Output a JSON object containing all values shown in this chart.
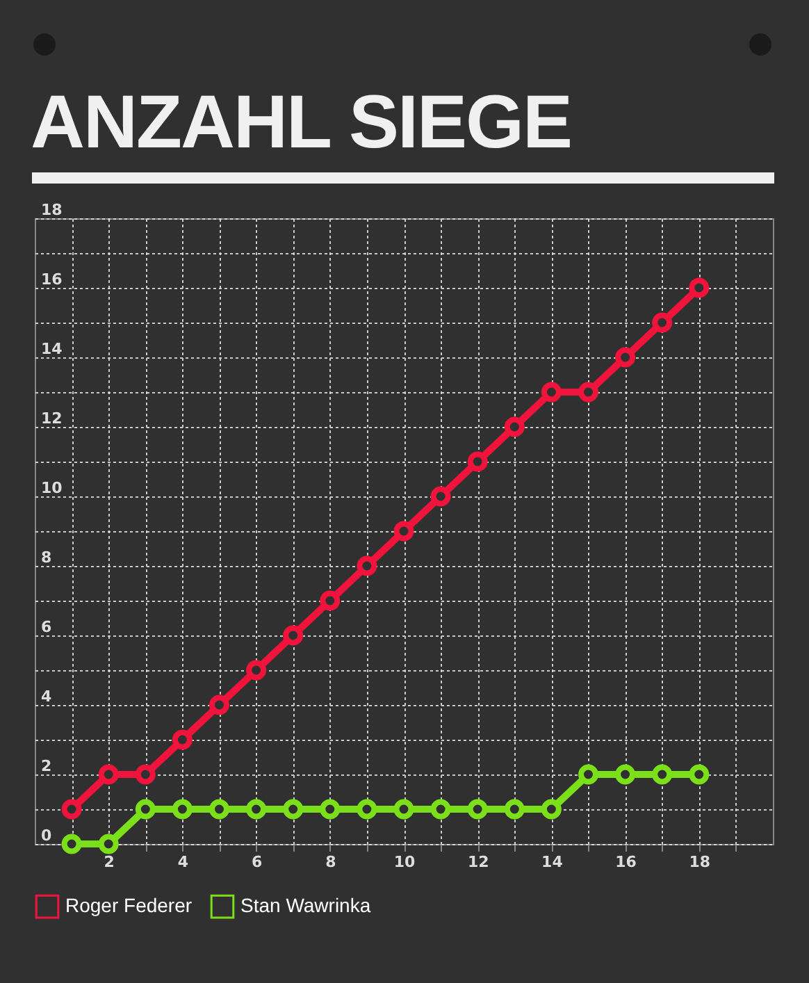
{
  "chart_data": {
    "type": "line",
    "title": "ANZAHL SIEGE",
    "x": [
      1,
      2,
      3,
      4,
      5,
      6,
      7,
      8,
      9,
      10,
      11,
      12,
      13,
      14,
      15,
      16,
      17,
      18
    ],
    "series": [
      {
        "name": "Roger Federer",
        "color": "#f0143c",
        "values": [
          1,
          2,
          2,
          3,
          4,
          5,
          6,
          7,
          8,
          9,
          10,
          11,
          12,
          13,
          13,
          14,
          15,
          16
        ]
      },
      {
        "name": "Stan Wawrinka",
        "color": "#7be01a",
        "values": [
          0,
          0,
          1,
          1,
          1,
          1,
          1,
          1,
          1,
          1,
          1,
          1,
          1,
          1,
          2,
          2,
          2,
          2
        ]
      }
    ],
    "xlim": [
      0,
      20
    ],
    "xticks": [
      {
        "value": 1,
        "label": null
      },
      2,
      {
        "value": 3,
        "label": null
      },
      4,
      {
        "value": 5,
        "label": null
      },
      6,
      {
        "value": 7,
        "label": null
      },
      8,
      {
        "value": 9,
        "label": null
      },
      10,
      {
        "value": 11,
        "label": null
      },
      12,
      {
        "value": 13,
        "label": null
      },
      14,
      {
        "value": 15,
        "label": null
      },
      16,
      {
        "value": 17,
        "label": null
      },
      18,
      {
        "value": 19,
        "label": null
      }
    ],
    "ylim": [
      0,
      18
    ],
    "yticks": [
      0,
      {
        "value": 1,
        "label": null
      },
      2,
      {
        "value": 3,
        "label": null
      },
      4,
      {
        "value": 5,
        "label": null
      },
      6,
      {
        "value": 7,
        "label": null
      },
      8,
      {
        "value": 9,
        "label": null
      },
      10,
      {
        "value": 11,
        "label": null
      },
      12,
      {
        "value": 13,
        "label": null
      },
      14,
      {
        "value": 15,
        "label": null
      },
      16,
      {
        "value": 17,
        "label": null
      },
      18
    ],
    "grid": true,
    "legend": "bottom",
    "marker": "circle",
    "line_style": "solid"
  }
}
